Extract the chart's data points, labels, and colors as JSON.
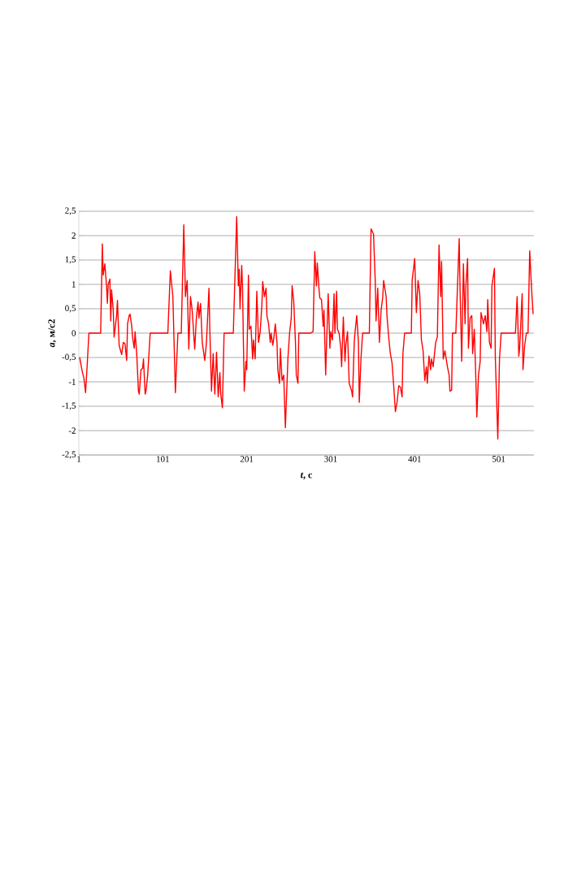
{
  "chart_data": {
    "type": "line",
    "xlabel": "*t*, с",
    "ylabel": "*a*, м/с2",
    "x": [
      2,
      5,
      7,
      9,
      11,
      13,
      23,
      27,
      29,
      30,
      32,
      34,
      35,
      36,
      38,
      39,
      40,
      42,
      43,
      46,
      47,
      49,
      52,
      54,
      56,
      58,
      59,
      61,
      62,
      64,
      65,
      67,
      68,
      70,
      72,
      73,
      75,
      77,
      78,
      80,
      81,
      83,
      86,
      89,
      102,
      107,
      110,
      113,
      116,
      119,
      123,
      126,
      128,
      130,
      132,
      134,
      136,
      139,
      141,
      143,
      144,
      146,
      148,
      151,
      153,
      156,
      157,
      159,
      161,
      163,
      165,
      167,
      169,
      170,
      172,
      174,
      177,
      185,
      189,
      191,
      192,
      193,
      195,
      196,
      197,
      198,
      200,
      201,
      203,
      204,
      206,
      208,
      209,
      211,
      213,
      215,
      217,
      219,
      220,
      222,
      224,
      225,
      227,
      229,
      230,
      232,
      233,
      235,
      237,
      238,
      240,
      241,
      243,
      245,
      247,
      250,
      252,
      254,
      255,
      257,
      259,
      260,
      262,
      263,
      266,
      277,
      280,
      282,
      284,
      285,
      287,
      288,
      290,
      292,
      293,
      295,
      296,
      298,
      300,
      301,
      303,
      305,
      306,
      308,
      309,
      311,
      313,
      314,
      316,
      318,
      319,
      321,
      323,
      326,
      327,
      329,
      330,
      332,
      334,
      335,
      337,
      339,
      347,
      349,
      352,
      354,
      355,
      357,
      359,
      361,
      363,
      364,
      367,
      368,
      370,
      372,
      374,
      376,
      378,
      380,
      382,
      384,
      386,
      387,
      389,
      397,
      398,
      401,
      403,
      405,
      407,
      409,
      411,
      413,
      415,
      416,
      418,
      420,
      421,
      423,
      426,
      428,
      430,
      432,
      433,
      435,
      437,
      440,
      442,
      443,
      445,
      446,
      450,
      454,
      455,
      457,
      459,
      461,
      462,
      464,
      465,
      467,
      469,
      470,
      472,
      474,
      475,
      477,
      479,
      480,
      483,
      485,
      487,
      488,
      490,
      492,
      493,
      496,
      497,
      500,
      502,
      504,
      506,
      510,
      521,
      523,
      525,
      526,
      529,
      530,
      532,
      534,
      536,
      538,
      540,
      542
    ],
    "series": [
      {
        "color": "#ff0000",
        "values": [
          -0.5,
          -0.78,
          -0.92,
          -1.22,
          -0.64,
          0,
          0,
          0,
          1.83,
          1.19,
          1.42,
          0.97,
          0.61,
          1.0,
          1.11,
          0.25,
          0.89,
          0.47,
          -0.08,
          0.36,
          0.67,
          -0.25,
          -0.44,
          -0.19,
          -0.22,
          -0.56,
          0.19,
          0.36,
          0.39,
          0.14,
          -0.08,
          -0.31,
          0.03,
          -0.44,
          -1.19,
          -1.25,
          -0.75,
          -0.72,
          -0.53,
          -1.25,
          -1.19,
          -0.86,
          0,
          0,
          0,
          0,
          1.28,
          0.75,
          -1.22,
          0,
          0,
          2.22,
          0.75,
          1.08,
          -0.33,
          0.75,
          0.47,
          -0.33,
          0.31,
          0.64,
          0.31,
          0.61,
          -0.19,
          -0.56,
          -0.19,
          0.92,
          0.08,
          -1.19,
          -0.42,
          -1.25,
          -0.39,
          -1.31,
          -0.81,
          -1.25,
          -1.53,
          0,
          0,
          0,
          2.39,
          0.97,
          1.31,
          0.5,
          1.39,
          0.92,
          -0.19,
          -1.19,
          -0.58,
          -0.75,
          1.19,
          0.08,
          0.14,
          -0.53,
          -0.14,
          -0.53,
          0.86,
          -0.19,
          0.03,
          0.58,
          1.06,
          0.75,
          0.92,
          0.36,
          0.19,
          -0.19,
          0,
          -0.25,
          -0.14,
          0.19,
          -0.19,
          -0.75,
          -1.03,
          -0.31,
          -0.97,
          -0.86,
          -1.94,
          -0.53,
          0,
          0.31,
          0.97,
          0.64,
          -0.19,
          -0.86,
          -1.03,
          0,
          0,
          0,
          0.03,
          1.67,
          0.97,
          1.44,
          0.92,
          0.72,
          0.69,
          0.14,
          0.47,
          -0.86,
          -0.25,
          0.81,
          -0.31,
          0.03,
          -0.14,
          0.81,
          0,
          0.86,
          0.08,
          0,
          -0.31,
          -0.69,
          0.33,
          -0.58,
          -0.25,
          0.03,
          -1.03,
          -1.19,
          -1.31,
          -0.19,
          0.03,
          0.36,
          -0.19,
          -1.42,
          -0.53,
          0,
          0,
          2.14,
          2.03,
          1.08,
          0.25,
          0.92,
          -0.19,
          0.47,
          0.75,
          1.08,
          0.75,
          0.36,
          -0.08,
          -0.42,
          -0.61,
          -1.08,
          -1.61,
          -1.42,
          -1.08,
          -1.11,
          -1.31,
          -0.42,
          0,
          0,
          1.08,
          1.53,
          0.42,
          1.08,
          0.81,
          -0.14,
          -0.36,
          -0.97,
          -0.69,
          -1.03,
          -0.47,
          -0.75,
          -0.53,
          -0.69,
          -0.19,
          -0.08,
          1.81,
          0.75,
          1.47,
          -0.53,
          -0.36,
          -0.69,
          -0.86,
          -1.19,
          -1.17,
          0,
          0,
          1.94,
          0.92,
          -0.58,
          1.42,
          0.19,
          0.97,
          1.53,
          -0.31,
          0.31,
          0.36,
          -0.42,
          0.08,
          -1.03,
          -1.72,
          -0.86,
          -0.58,
          0.42,
          0.19,
          0.36,
          0.03,
          0.69,
          -0.19,
          -0.31,
          0.97,
          1.33,
          -0.47,
          -2.17,
          -0.53,
          0,
          0,
          0,
          0,
          0.75,
          -0.47,
          -0.31,
          0.81,
          -0.75,
          -0.25,
          0,
          0,
          1.69,
          0.97,
          0.39
        ]
      }
    ],
    "xlim": [
      1,
      543
    ],
    "ylim": [
      -2.5,
      2.5
    ],
    "xticks": [
      1,
      101,
      201,
      301,
      401,
      501
    ],
    "yticks": [
      {
        "value": -2.5,
        "label": "-2,5"
      },
      -2,
      {
        "value": -1.5,
        "label": "-1,5"
      },
      -1,
      {
        "value": -0.5,
        "label": "-0,5"
      },
      0,
      {
        "value": 0.5,
        "label": "0,5"
      },
      1,
      {
        "value": 1.5,
        "label": "1,5"
      },
      2,
      {
        "value": 2.5,
        "label": "2,5"
      }
    ],
    "grid": "y"
  }
}
